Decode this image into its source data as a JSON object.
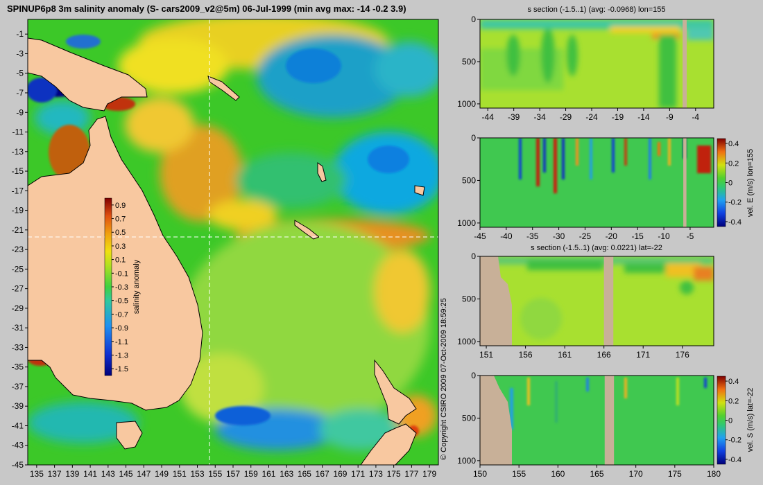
{
  "main_title": "SPINUP6p8 3m salinity anomaly (S- cars2009_v2@5m) 06-Jul-1999 (min avg max: -14 -0.2 3.9)",
  "copyright": "© Copyright CSIRO 2009   07-Oct-2009 18:59:25",
  "colors": {
    "background": "#c8c8c8",
    "land": "#f8c8a0",
    "section_land": "#c8b098",
    "ocean_base": "#3cc828",
    "crosshair": "#ffffff"
  },
  "chart_data": [
    {
      "id": "map",
      "type": "heatmap",
      "title": "SPINUP6p8 3m salinity anomaly (S- cars2009_v2@5m) 06-Jul-1999 (min avg max: -14 -0.2 3.9)",
      "x_ticks": [
        "135",
        "137",
        "139",
        "141",
        "143",
        "145",
        "147",
        "149",
        "151",
        "153",
        "155",
        "157",
        "159",
        "161",
        "163",
        "165",
        "167",
        "169",
        "171",
        "173",
        "175",
        "177",
        "179"
      ],
      "y_ticks": [
        "-1",
        "-3",
        "-5",
        "-7",
        "-9",
        "-11",
        "-13",
        "-15",
        "-17",
        "-19",
        "-21",
        "-23",
        "-25",
        "-27",
        "-29",
        "-31",
        "-33",
        "-35",
        "-37",
        "-39",
        "-41",
        "-43",
        "-45"
      ],
      "xlim": [
        134,
        180
      ],
      "ylim": [
        -45,
        0.5
      ],
      "crosshair": {
        "lon": 155,
        "lat": -22
      },
      "colorbar": {
        "label": "salinity anomaly",
        "ticks": [
          "0.9",
          "0.7",
          "0.5",
          "0.3",
          "0.1",
          "-0.1",
          "-0.3",
          "-0.5",
          "-0.7",
          "-0.9",
          "-1.1",
          "-1.3",
          "-1.5"
        ],
        "range": [
          -1.6,
          1.0
        ]
      }
    },
    {
      "id": "section1",
      "type": "heatmap",
      "title": "s section (-1.5..1) (avg: -0.0968) lon=155",
      "x_ticks": [
        "-44",
        "-39",
        "-34",
        "-29",
        "-24",
        "-19",
        "-14",
        "-9",
        "-4"
      ],
      "xlim": [
        -45.5,
        -0.5
      ],
      "y_ticks": [
        "0",
        "500",
        "1000"
      ],
      "ylim": [
        0,
        1050
      ],
      "land_x": [
        -6.5,
        -5.7
      ]
    },
    {
      "id": "section2",
      "type": "heatmap",
      "title": "",
      "x_ticks": [
        "-45",
        "-40",
        "-35",
        "-30",
        "-25",
        "-20",
        "-15",
        "-10",
        "-5"
      ],
      "xlim": [
        -45,
        -0.5
      ],
      "y_ticks": [
        "0",
        "500",
        "1000"
      ],
      "ylim": [
        0,
        1050
      ],
      "land_x": [
        -6.3,
        -5.7
      ],
      "colorbar": {
        "label": "vel. E (m/s) lon=155",
        "ticks": [
          "0.4",
          "0.2",
          "0",
          "-0.2",
          "-0.4"
        ],
        "range": [
          -0.45,
          0.45
        ]
      }
    },
    {
      "id": "section3",
      "type": "heatmap",
      "title": "s section (-1.5..1) (avg: 0.0221) lat=-22",
      "x_ticks": [
        "151",
        "156",
        "161",
        "166",
        "171",
        "176"
      ],
      "xlim": [
        150.2,
        180
      ],
      "y_ticks": [
        "0",
        "500",
        "1000"
      ],
      "ylim": [
        0,
        1050
      ],
      "land_x": [
        166,
        167.2
      ]
    },
    {
      "id": "section4",
      "type": "heatmap",
      "title": "",
      "x_ticks": [
        "150",
        "155",
        "160",
        "165",
        "170",
        "175",
        "180"
      ],
      "xlim": [
        150,
        180
      ],
      "y_ticks": [
        "0",
        "500",
        "1000"
      ],
      "ylim": [
        0,
        1050
      ],
      "land_x": [
        166,
        167.2
      ],
      "colorbar": {
        "label": "vel. S (m/s) lat=-22",
        "ticks": [
          "0.4",
          "0.2",
          "0",
          "-0.2",
          "-0.4"
        ],
        "range": [
          -0.45,
          0.45
        ]
      }
    }
  ]
}
